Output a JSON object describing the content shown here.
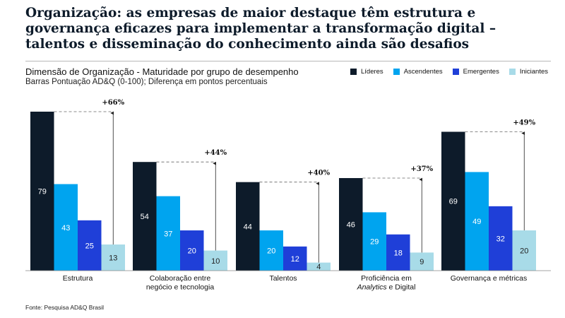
{
  "headline": "Organização: as empresas de maior destaque têm estrutura e governança eficazes para implementar a transformação digital – talentos e disseminação do conhecimento ainda são desafios",
  "subtitle": "Dimensão de Organização - Maturidade por grupo de desempenho",
  "subtitle2": "Barras Pontuação AD&Q (0-100); Diferença em pontos percentuais",
  "footer": "Fonte: Pesquisa AD&Q Brasil",
  "colors": {
    "Líderes": "#0d1b2a",
    "Ascendentes": "#00a4ef",
    "Emergentes": "#1f3fd8",
    "Iniciantes": "#a8dbe8"
  },
  "chart_data": {
    "type": "bar",
    "title": "Dimensão de Organização - Maturidade por grupo de desempenho",
    "ylabel": "Pontuação AD&Q (0-100)",
    "ylim": [
      0,
      79
    ],
    "legend_position": "top-right",
    "categories": [
      "Estrutura",
      "Colaboração entre negócio e tecnologia",
      "Talentos",
      "Proficiência em Analytics e Digital",
      "Governança e métricas"
    ],
    "category_lines": [
      [
        "Estrutura"
      ],
      [
        "Colaboração entre",
        "negócio e tecnologia"
      ],
      [
        "Talentos"
      ],
      [
        "Proficiência em",
        "Analytics e Digital"
      ],
      [
        "Governança e métricas"
      ]
    ],
    "series": [
      {
        "name": "Líderes",
        "values": [
          79,
          54,
          44,
          46,
          69
        ]
      },
      {
        "name": "Ascendentes",
        "values": [
          43,
          37,
          20,
          29,
          49
        ]
      },
      {
        "name": "Emergentes",
        "values": [
          25,
          20,
          12,
          18,
          32
        ]
      },
      {
        "name": "Iniciantes",
        "values": [
          13,
          10,
          4,
          9,
          20
        ]
      }
    ],
    "differences": [
      "+66%",
      "+44%",
      "+40%",
      "+37%",
      "+49%"
    ]
  }
}
